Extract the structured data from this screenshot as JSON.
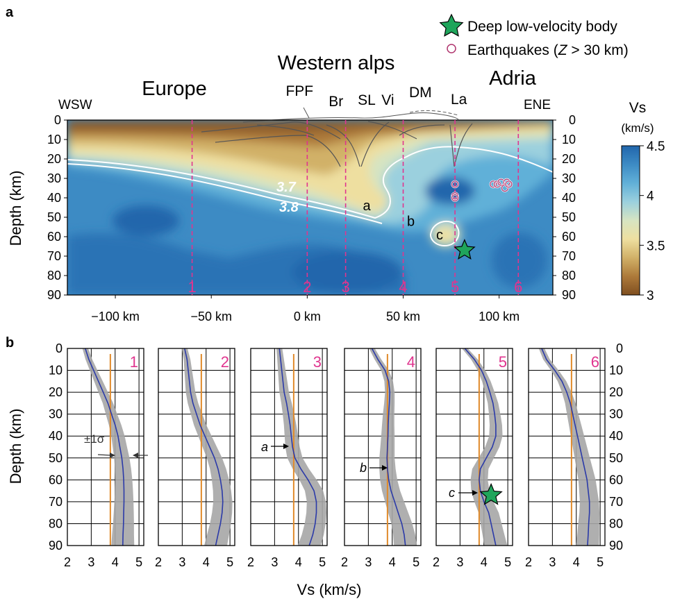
{
  "panel_a": {
    "letter": "a",
    "legend": {
      "star_label": "Deep low-velocity body",
      "eq_label_prefix": "Earthquakes (",
      "eq_label_var": "Z",
      "eq_label_suffix": " > 30 km)"
    },
    "regions": {
      "europe": "Europe",
      "alps": "Western alps",
      "adria": "Adria"
    },
    "ends": {
      "left": "WSW",
      "right": "ENE"
    },
    "faults": [
      {
        "label": "FPF",
        "x_km": -4
      },
      {
        "label": "Br",
        "x_km": 15
      },
      {
        "label": "SL",
        "x_km": 31
      },
      {
        "label": "Vi",
        "x_km": 42
      },
      {
        "label": "DM",
        "x_km": 59
      },
      {
        "label": "La",
        "x_km": 79
      }
    ],
    "y_axis_label": "Depth (km)",
    "y_ticks": [
      "0",
      "10",
      "20",
      "30",
      "40",
      "50",
      "60",
      "70",
      "80",
      "90"
    ],
    "x_ticks": [
      {
        "label": "−100 km",
        "value": -100
      },
      {
        "label": "−50 km",
        "value": -50
      },
      {
        "label": "0 km",
        "value": 0
      },
      {
        "label": "50 km",
        "value": 50
      },
      {
        "label": "100 km",
        "value": 100
      }
    ],
    "profiles": [
      {
        "label": "1",
        "x_km": -60
      },
      {
        "label": "2",
        "x_km": 0
      },
      {
        "label": "3",
        "x_km": 20
      },
      {
        "label": "4",
        "x_km": 50
      },
      {
        "label": "5",
        "x_km": 77
      },
      {
        "label": "6",
        "x_km": 110
      }
    ],
    "contour_labels": {
      "c37": "3.7",
      "c38": "3.8"
    },
    "anomalies": [
      {
        "label": "a",
        "x_km": 31,
        "depth_km": 44
      },
      {
        "label": "b",
        "x_km": 54,
        "depth_km": 52
      },
      {
        "label": "c",
        "x_km": 69,
        "depth_km": 59
      }
    ],
    "star": {
      "x_km": 82,
      "depth_km": 67
    },
    "earthquakes": [
      {
        "x_km": 77,
        "depth_km": 33
      },
      {
        "x_km": 77,
        "depth_km": 39
      },
      {
        "x_km": 77,
        "depth_km": 40
      },
      {
        "x_km": 97,
        "depth_km": 33
      },
      {
        "x_km": 99,
        "depth_km": 33
      },
      {
        "x_km": 101,
        "depth_km": 32
      },
      {
        "x_km": 104,
        "depth_km": 32
      },
      {
        "x_km": 103,
        "depth_km": 35
      },
      {
        "x_km": 105,
        "depth_km": 33
      }
    ],
    "colorbar": {
      "title": "Vs",
      "unit": "(km/s)",
      "ticks": [
        "4.5",
        "4",
        "3.5",
        "3"
      ],
      "stops": [
        "#2166ac",
        "#3d8bc4",
        "#61b0d8",
        "#9bd0de",
        "#d6e4c2",
        "#eedfa0",
        "#d1b168",
        "#ad7a3a",
        "#7f4f20"
      ]
    }
  },
  "panel_b": {
    "letter": "b",
    "y_axis_label": "Depth (km)",
    "x_axis_label": "Vs (km/s)",
    "y_ticks": [
      "0",
      "10",
      "20",
      "30",
      "40",
      "50",
      "60",
      "70",
      "80",
      "90"
    ],
    "x_ticks": [
      "2",
      "3",
      "4",
      "5"
    ],
    "sigma_label": "±1σ",
    "arrow_labels": [
      "a",
      "b",
      "c"
    ]
  },
  "chart_data": [
    {
      "type": "heatmap",
      "xlim": [
        -125,
        128
      ],
      "ylim": [
        0,
        90
      ],
      "y_inverted": true,
      "x_unit": "km",
      "y_unit": "km",
      "zlim": [
        3.0,
        4.5
      ],
      "contours_labeled": [
        3.7,
        3.8
      ]
    },
    {
      "type": "line",
      "xlim": [
        2,
        5.2
      ],
      "ylim": [
        0,
        90
      ],
      "y_inverted": true,
      "reference_vs": 3.8,
      "depth": [
        0,
        5,
        10,
        15,
        20,
        25,
        30,
        35,
        40,
        45,
        50,
        55,
        60,
        65,
        70,
        75,
        80,
        85,
        90
      ],
      "profiles": [
        {
          "name": "1",
          "vs": [
            2.75,
            2.9,
            3.1,
            3.3,
            3.5,
            3.7,
            3.85,
            4.0,
            4.12,
            4.2,
            4.28,
            4.33,
            4.36,
            4.37,
            4.37,
            4.36,
            4.35,
            4.33,
            4.32
          ]
        },
        {
          "name": "2",
          "vs": [
            3.1,
            3.2,
            3.25,
            3.3,
            3.35,
            3.45,
            3.6,
            3.75,
            3.95,
            4.15,
            4.35,
            4.5,
            4.6,
            4.67,
            4.7,
            4.67,
            4.6,
            4.5,
            4.4
          ]
        },
        {
          "name": "3",
          "vs": [
            3.2,
            3.25,
            3.3,
            3.35,
            3.4,
            3.5,
            3.58,
            3.65,
            3.7,
            3.75,
            3.85,
            4.1,
            4.4,
            4.65,
            4.75,
            4.75,
            4.7,
            4.6,
            4.45
          ]
        },
        {
          "name": "4",
          "vs": [
            3.15,
            3.4,
            3.7,
            3.85,
            3.9,
            3.88,
            3.85,
            3.83,
            3.82,
            3.8,
            3.78,
            3.8,
            3.85,
            3.95,
            4.1,
            4.25,
            4.4,
            4.5,
            4.55
          ]
        },
        {
          "name": "5",
          "vs": [
            3.2,
            3.6,
            3.9,
            4.1,
            4.25,
            4.38,
            4.45,
            4.5,
            4.5,
            4.35,
            4.1,
            3.85,
            3.8,
            3.85,
            4.0,
            4.2,
            4.3,
            4.4,
            4.5
          ]
        },
        {
          "name": "6",
          "vs": [
            2.55,
            2.75,
            3.1,
            3.4,
            3.6,
            3.75,
            3.85,
            3.95,
            4.05,
            4.15,
            4.25,
            4.35,
            4.45,
            4.5,
            4.55,
            4.55,
            4.52,
            4.5,
            4.47
          ]
        }
      ]
    }
  ]
}
